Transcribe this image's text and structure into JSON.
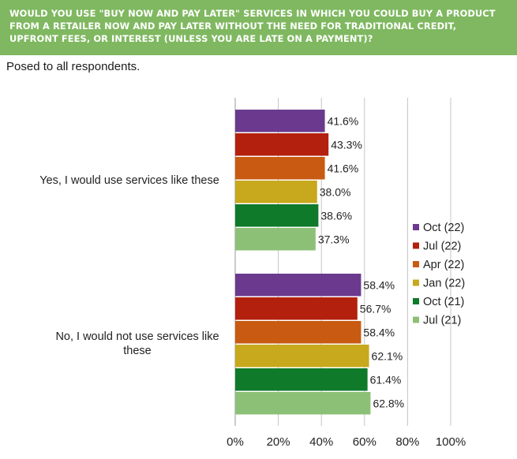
{
  "header": {
    "question": "WOULD YOU USE \"BUY NOW AND PAY LATER\" SERVICES IN WHICH YOU COULD BUY A PRODUCT FROM A RETAILER NOW AND PAY LATER WITHOUT THE NEED FOR TRADITIONAL CREDIT, UPFRONT FEES, OR INTEREST (UNLESS YOU ARE LATE ON A PAYMENT)?",
    "subtitle": "Posed to all respondents."
  },
  "colors": {
    "banner": "#7fb860",
    "Oct (22)": "#6b3a8e",
    "Jul (22)": "#b3200e",
    "Apr (22)": "#c85a11",
    "Jan (22)": "#c8a81c",
    "Oct (21)": "#0f7a2a",
    "Jul (21)": "#8cc077"
  },
  "chart_data": {
    "type": "bar",
    "orientation": "horizontal",
    "categories": [
      "Yes, I would use services like these",
      "No, I would not use services like these"
    ],
    "series": [
      {
        "name": "Oct (22)",
        "values": [
          41.6,
          58.4
        ],
        "labels": [
          "41.6%",
          "58.4%"
        ]
      },
      {
        "name": "Jul (22)",
        "values": [
          43.3,
          56.7
        ],
        "labels": [
          "43.3%",
          "56.7%"
        ]
      },
      {
        "name": "Apr (22)",
        "values": [
          41.6,
          58.4
        ],
        "labels": [
          "41.6%",
          "58.4%"
        ]
      },
      {
        "name": "Jan (22)",
        "values": [
          38.0,
          62.1
        ],
        "labels": [
          "38.0%",
          "62.1%"
        ]
      },
      {
        "name": "Oct (21)",
        "values": [
          38.6,
          61.4
        ],
        "labels": [
          "38.6%",
          "61.4%"
        ]
      },
      {
        "name": "Jul (21)",
        "values": [
          37.3,
          62.8
        ],
        "labels": [
          "37.3%",
          "62.8%"
        ]
      }
    ],
    "xlim": [
      0,
      100
    ],
    "xticks": [
      "0%",
      "20%",
      "40%",
      "60%",
      "80%",
      "100%"
    ],
    "grid": "vertical",
    "legend": "right"
  }
}
